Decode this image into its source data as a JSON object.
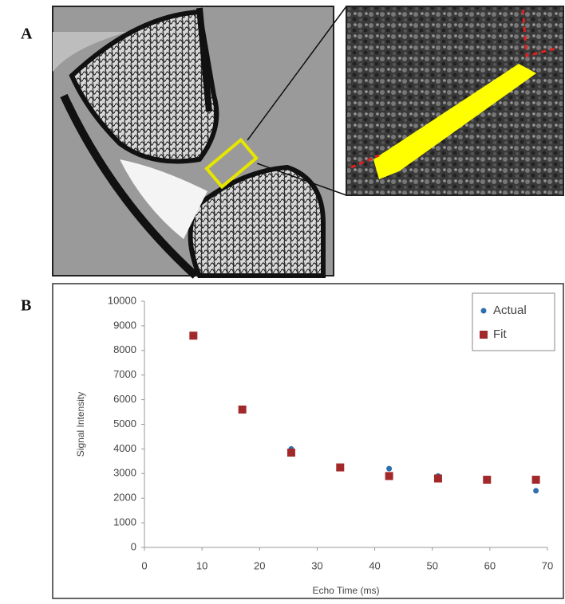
{
  "panel_labels": {
    "a": "A",
    "b": "B"
  },
  "chart_data": {
    "type": "scatter",
    "xlabel": "Echo Time (ms)",
    "ylabel": "Signal Intensity",
    "x": [
      8.5,
      17,
      25.5,
      34,
      42.5,
      51,
      59.5,
      68
    ],
    "series": [
      {
        "name": "Actual",
        "color": "#2f6fb0",
        "marker": "circle",
        "values": [
          8600,
          5600,
          4000,
          3250,
          3200,
          2900,
          2700,
          2300
        ]
      },
      {
        "name": "Fit",
        "color": "#a3282a",
        "marker": "square",
        "values": [
          8600,
          5600,
          3850,
          3250,
          2900,
          2800,
          2750,
          2750
        ]
      }
    ],
    "xlim": [
      0,
      70
    ],
    "xticks": [
      0,
      10,
      20,
      30,
      40,
      50,
      60,
      70
    ],
    "ylim": [
      0,
      10000
    ],
    "yticks": [
      0,
      1000,
      2000,
      3000,
      4000,
      5000,
      6000,
      7000,
      8000,
      9000,
      10000
    ],
    "grid": false,
    "legend": "top-right"
  }
}
